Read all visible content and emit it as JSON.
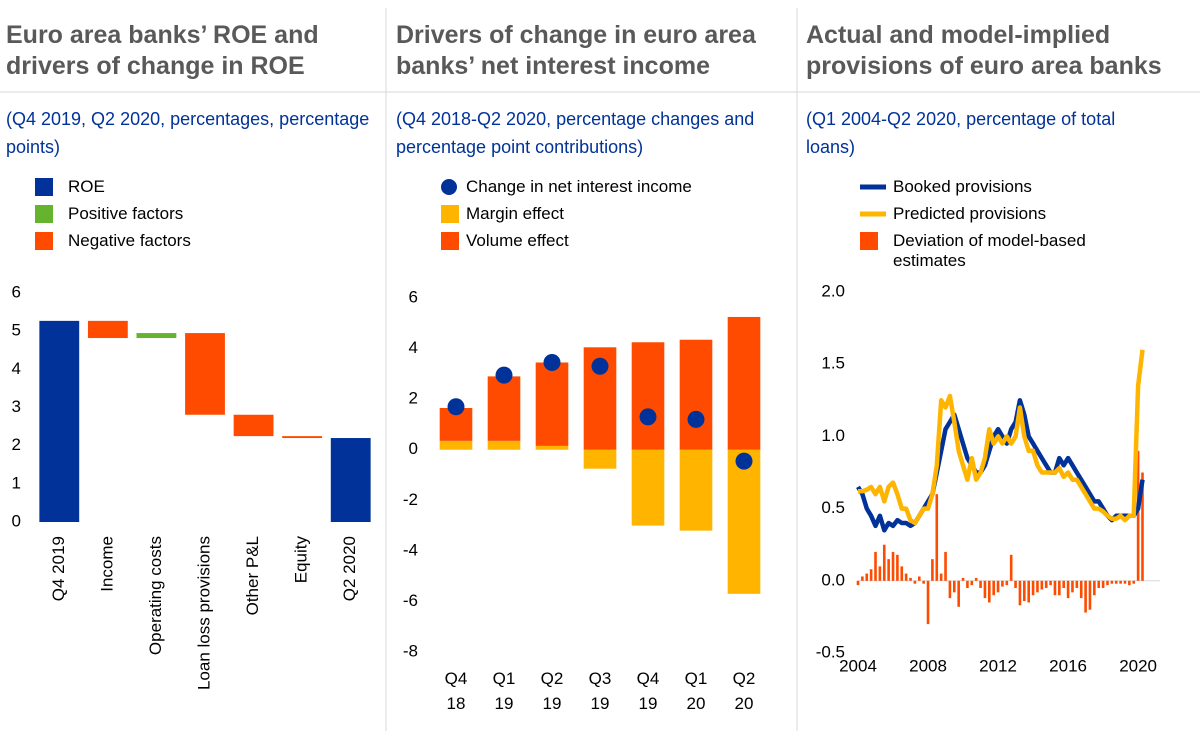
{
  "chart_data": [
    {
      "type": "waterfall",
      "title": "Euro area banks’ ROE and drivers of change in ROE",
      "subtitle": "(Q4 2019, Q2 2020, percentages, percentage points)",
      "categories": [
        "Q4 2019",
        "Income",
        "Operating costs",
        "Loan loss provisions",
        "Other P&L",
        "Equity",
        "Q2 2020"
      ],
      "series": [
        {
          "name": "ROE",
          "color": "#003299",
          "values": [
            5.27,
            null,
            null,
            null,
            null,
            null,
            2.2
          ]
        },
        {
          "name": "Positive factors",
          "color": "#65b32e",
          "values": [
            null,
            null,
            0.13,
            null,
            null,
            null,
            null
          ]
        },
        {
          "name": "Negative factors",
          "color": "#ff4b00",
          "values": [
            null,
            -0.45,
            null,
            -2.14,
            -0.56,
            -0.05,
            null
          ]
        }
      ],
      "ylim": [
        0,
        6
      ],
      "yticks": [
        0,
        1,
        2,
        3,
        4,
        5,
        6
      ],
      "grid": false
    },
    {
      "type": "bar",
      "title": "Drivers of change in euro area banks’ net interest income",
      "subtitle": "(Q4 2018-Q2 2020, percentage changes and percentage point contributions)",
      "categories": [
        "Q4 18",
        "Q1 19",
        "Q2 19",
        "Q3 19",
        "Q4 19",
        "Q1 20",
        "Q2 20"
      ],
      "series": [
        {
          "name": "Change in net interest income",
          "color": "#003299",
          "type": "scatter",
          "values": [
            1.7,
            2.95,
            3.45,
            3.3,
            1.3,
            1.2,
            -0.45
          ]
        },
        {
          "name": "Margin effect",
          "color": "#ffb400",
          "values": [
            0.35,
            0.35,
            0.15,
            -0.75,
            -3.0,
            -3.2,
            -5.7
          ]
        },
        {
          "name": "Volume effect",
          "color": "#ff4b00",
          "values": [
            1.3,
            2.55,
            3.3,
            4.05,
            4.25,
            4.35,
            5.25
          ]
        }
      ],
      "stacked": true,
      "ylim": [
        -8,
        6
      ],
      "yticks": [
        -8,
        -6,
        -4,
        -2,
        0,
        2,
        4,
        6
      ],
      "grid": false
    },
    {
      "type": "line",
      "title": "Actual and model-implied provisions of euro area banks",
      "subtitle": "(Q1 2004-Q2 2020, percentage of total loans)",
      "x": [
        2004,
        2004.25,
        2004.5,
        2004.75,
        2005,
        2005.25,
        2005.5,
        2005.75,
        2006,
        2006.25,
        2006.5,
        2006.75,
        2007,
        2007.25,
        2007.5,
        2007.75,
        2008,
        2008.25,
        2008.5,
        2008.75,
        2009,
        2009.25,
        2009.5,
        2009.75,
        2010,
        2010.25,
        2010.5,
        2010.75,
        2011,
        2011.25,
        2011.5,
        2011.75,
        2012,
        2012.25,
        2012.5,
        2012.75,
        2013,
        2013.25,
        2013.5,
        2013.75,
        2014,
        2014.25,
        2014.5,
        2014.75,
        2015,
        2015.25,
        2015.5,
        2015.75,
        2016,
        2016.25,
        2016.5,
        2016.75,
        2017,
        2017.25,
        2017.5,
        2017.75,
        2018,
        2018.25,
        2018.5,
        2018.75,
        2019,
        2019.25,
        2019.5,
        2019.75,
        2020,
        2020.25
      ],
      "series": [
        {
          "name": "Booked provisions",
          "color": "#003299",
          "type": "line",
          "values": [
            0.65,
            0.6,
            0.5,
            0.45,
            0.38,
            0.45,
            0.35,
            0.4,
            0.38,
            0.42,
            0.4,
            0.4,
            0.38,
            0.4,
            0.45,
            0.5,
            0.55,
            0.6,
            0.75,
            0.9,
            1.05,
            1.1,
            1.15,
            1.05,
            0.95,
            0.85,
            0.8,
            0.75,
            0.75,
            0.8,
            0.9,
            1.0,
            1.05,
            1.0,
            0.95,
            1.05,
            1.1,
            1.25,
            1.15,
            1.0,
            0.95,
            0.9,
            0.85,
            0.8,
            0.75,
            0.75,
            0.85,
            0.8,
            0.85,
            0.8,
            0.75,
            0.7,
            0.65,
            0.6,
            0.55,
            0.55,
            0.5,
            0.45,
            0.42,
            0.45,
            0.45,
            0.45,
            0.45,
            0.45,
            0.5,
            0.7
          ]
        },
        {
          "name": "Predicted provisions",
          "color": "#ffb400",
          "type": "line",
          "values": [
            0.62,
            0.62,
            0.63,
            0.65,
            0.6,
            0.65,
            0.55,
            0.65,
            0.68,
            0.6,
            0.5,
            0.5,
            0.42,
            0.4,
            0.45,
            0.5,
            0.5,
            0.6,
            0.8,
            1.25,
            1.2,
            1.28,
            1.1,
            0.9,
            0.8,
            0.7,
            0.85,
            0.7,
            0.75,
            0.85,
            1.05,
            0.95,
            1.0,
            0.95,
            1.0,
            0.95,
            1.0,
            1.2,
            1.0,
            0.9,
            0.9,
            0.8,
            0.75,
            0.75,
            0.75,
            0.75,
            0.78,
            0.72,
            0.75,
            0.7,
            0.7,
            0.65,
            0.6,
            0.55,
            0.5,
            0.5,
            0.48,
            0.45,
            0.43,
            0.43,
            0.45,
            0.42,
            0.45,
            0.45,
            1.35,
            1.6
          ]
        },
        {
          "name": "Deviation of model-based estimates",
          "color": "#ff4b00",
          "type": "bar",
          "values": [
            -0.03,
            0.03,
            0.05,
            0.08,
            0.2,
            0.1,
            0.25,
            0.15,
            0.2,
            0.18,
            0.1,
            0.05,
            0.02,
            -0.02,
            0.03,
            -0.02,
            -0.3,
            0.15,
            0.6,
            0.05,
            0.2,
            -0.12,
            -0.08,
            -0.18,
            0.02,
            -0.05,
            -0.03,
            0.02,
            -0.05,
            -0.12,
            -0.15,
            -0.1,
            -0.08,
            -0.04,
            -0.03,
            0.18,
            -0.05,
            -0.17,
            -0.14,
            -0.15,
            -0.1,
            -0.08,
            -0.06,
            -0.05,
            -0.03,
            -0.1,
            -0.1,
            -0.05,
            -0.12,
            -0.08,
            -0.05,
            -0.12,
            -0.22,
            -0.2,
            -0.1,
            -0.05,
            -0.05,
            -0.03,
            -0.02,
            -0.02,
            -0.02,
            -0.02,
            -0.03,
            -0.02,
            0.9,
            0.75
          ]
        }
      ],
      "xlim": [
        2004,
        2021.25
      ],
      "xticks": [
        2004,
        2008,
        2012,
        2016,
        2020
      ],
      "ylim": [
        -0.5,
        2.0
      ],
      "yticks": [
        -0.5,
        {
          "value": 0,
          "label": "0.0"
        },
        0.5,
        {
          "value": 1,
          "label": "1.0"
        },
        1.5,
        {
          "value": 2,
          "label": "2.0"
        }
      ],
      "grid": false
    }
  ]
}
